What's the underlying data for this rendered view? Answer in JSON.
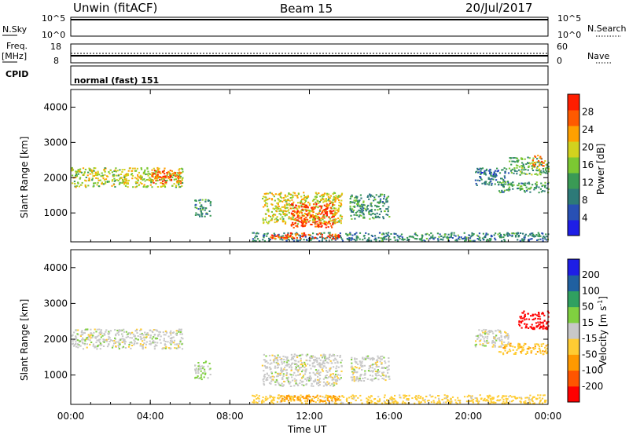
{
  "header": {
    "station": "Unwin (fitACF)",
    "beam": "Beam 15",
    "date": "20/Jul/2017"
  },
  "strip_labels": {
    "nsky": "N.Sky",
    "nsky_top": "10^5",
    "nsky_bottom": "10^0",
    "nsearch": "N.Search",
    "nsearch_top": "10^5",
    "nsearch_bottom": "10^0",
    "freq": "Freq.",
    "freq_unit": "[MHz]",
    "freq_top": "18",
    "freq_bottom": "8",
    "nave": "Nave",
    "nave_top": "60",
    "nave_bottom": "0",
    "cpid": "CPID",
    "cpid_value": "normal (fast) 151"
  },
  "colors": {
    "frame": "#000000",
    "gray": "#c8c8c8",
    "power_scale": [
      "#1e1ee6",
      "#2850b4",
      "#2d7a78",
      "#3a9a55",
      "#7cc832",
      "#d2d21e",
      "#ffa000",
      "#ff5a00",
      "#ff1e00"
    ],
    "velocity_scale": [
      "#ff0000",
      "#ff5500",
      "#ff9900",
      "#ffcc33",
      "#c8c8c8",
      "#80d040",
      "#30a060",
      "#2060a0",
      "#1e1ee6"
    ]
  },
  "chart_data": [
    {
      "type": "heatmap",
      "name": "power",
      "ylabel": "Slant Range [km]",
      "ylim": [
        180,
        4500
      ],
      "yticks": [
        "1000",
        "2000",
        "3000",
        "4000"
      ],
      "xlim": [
        0,
        24
      ],
      "x_ticks": [
        "00:00",
        "04:00",
        "08:00",
        "12:00",
        "16:00",
        "20:00",
        "00:00"
      ],
      "colorbar": {
        "label": "Power [dB]",
        "ticks": [
          "4",
          "8",
          "12",
          "16",
          "20",
          "24",
          "28"
        ],
        "range": [
          0,
          30
        ]
      },
      "regions": [
        {
          "t": [
            0,
            5.6
          ],
          "r": [
            1750,
            2300
          ],
          "value": 17
        },
        {
          "t": [
            4.0,
            5.5
          ],
          "r": [
            1850,
            2250
          ],
          "value": 25
        },
        {
          "t": [
            6.2,
            7.0
          ],
          "r": [
            900,
            1400
          ],
          "value": 10
        },
        {
          "t": [
            9.6,
            13.6
          ],
          "r": [
            700,
            1600
          ],
          "value": 18
        },
        {
          "t": [
            11.0,
            13.2
          ],
          "r": [
            600,
            1300
          ],
          "value": 27
        },
        {
          "t": [
            14.0,
            16.0
          ],
          "r": [
            850,
            1550
          ],
          "value": 11
        },
        {
          "t": [
            9.0,
            24.0
          ],
          "r": [
            220,
            460
          ],
          "value": 9
        },
        {
          "t": [
            10.0,
            13.5
          ],
          "r": [
            280,
            450
          ],
          "value": 26
        },
        {
          "t": [
            20.3,
            22.0
          ],
          "r": [
            1800,
            2300
          ],
          "value": 8
        },
        {
          "t": [
            21.5,
            24.0
          ],
          "r": [
            1600,
            1900
          ],
          "value": 11
        },
        {
          "t": [
            22.0,
            24.0
          ],
          "r": [
            2100,
            2600
          ],
          "value": 13
        },
        {
          "t": [
            23.2,
            23.8
          ],
          "r": [
            2350,
            2650
          ],
          "value": 23
        }
      ]
    },
    {
      "type": "heatmap",
      "name": "velocity",
      "ylabel": "Slant Range [km]",
      "xlabel": "Time UT",
      "ylim": [
        180,
        4500
      ],
      "yticks": [
        "1000",
        "2000",
        "3000",
        "4000"
      ],
      "xlim": [
        0,
        24
      ],
      "x_ticks": [
        "00:00",
        "04:00",
        "08:00",
        "12:00",
        "16:00",
        "20:00",
        "00:00"
      ],
      "colorbar": {
        "label": "Velocity [m s",
        "label_exp": "-1",
        "label_end": "]",
        "ticks": [
          "200",
          "100",
          "50",
          "15",
          "-15",
          "-50",
          "-100",
          "-200"
        ]
      },
      "regions": [
        {
          "t": [
            0,
            5.6
          ],
          "r": [
            1750,
            2300
          ],
          "value": 0
        },
        {
          "t": [
            6.2,
            7.0
          ],
          "r": [
            900,
            1400
          ],
          "value": 20
        },
        {
          "t": [
            9.6,
            13.6
          ],
          "r": [
            700,
            1600
          ],
          "value": 0
        },
        {
          "t": [
            14.0,
            16.0
          ],
          "r": [
            850,
            1550
          ],
          "value": 0
        },
        {
          "t": [
            9.0,
            24.0
          ],
          "r": [
            220,
            460
          ],
          "value": -30
        },
        {
          "t": [
            10.5,
            13.5
          ],
          "r": [
            280,
            450
          ],
          "value": -70
        },
        {
          "t": [
            20.3,
            22.0
          ],
          "r": [
            1800,
            2300
          ],
          "value": 0
        },
        {
          "t": [
            21.5,
            24.0
          ],
          "r": [
            1600,
            1900
          ],
          "value": -40
        },
        {
          "t": [
            22.5,
            24.0
          ],
          "r": [
            2300,
            2800
          ],
          "value": -220
        }
      ]
    }
  ]
}
